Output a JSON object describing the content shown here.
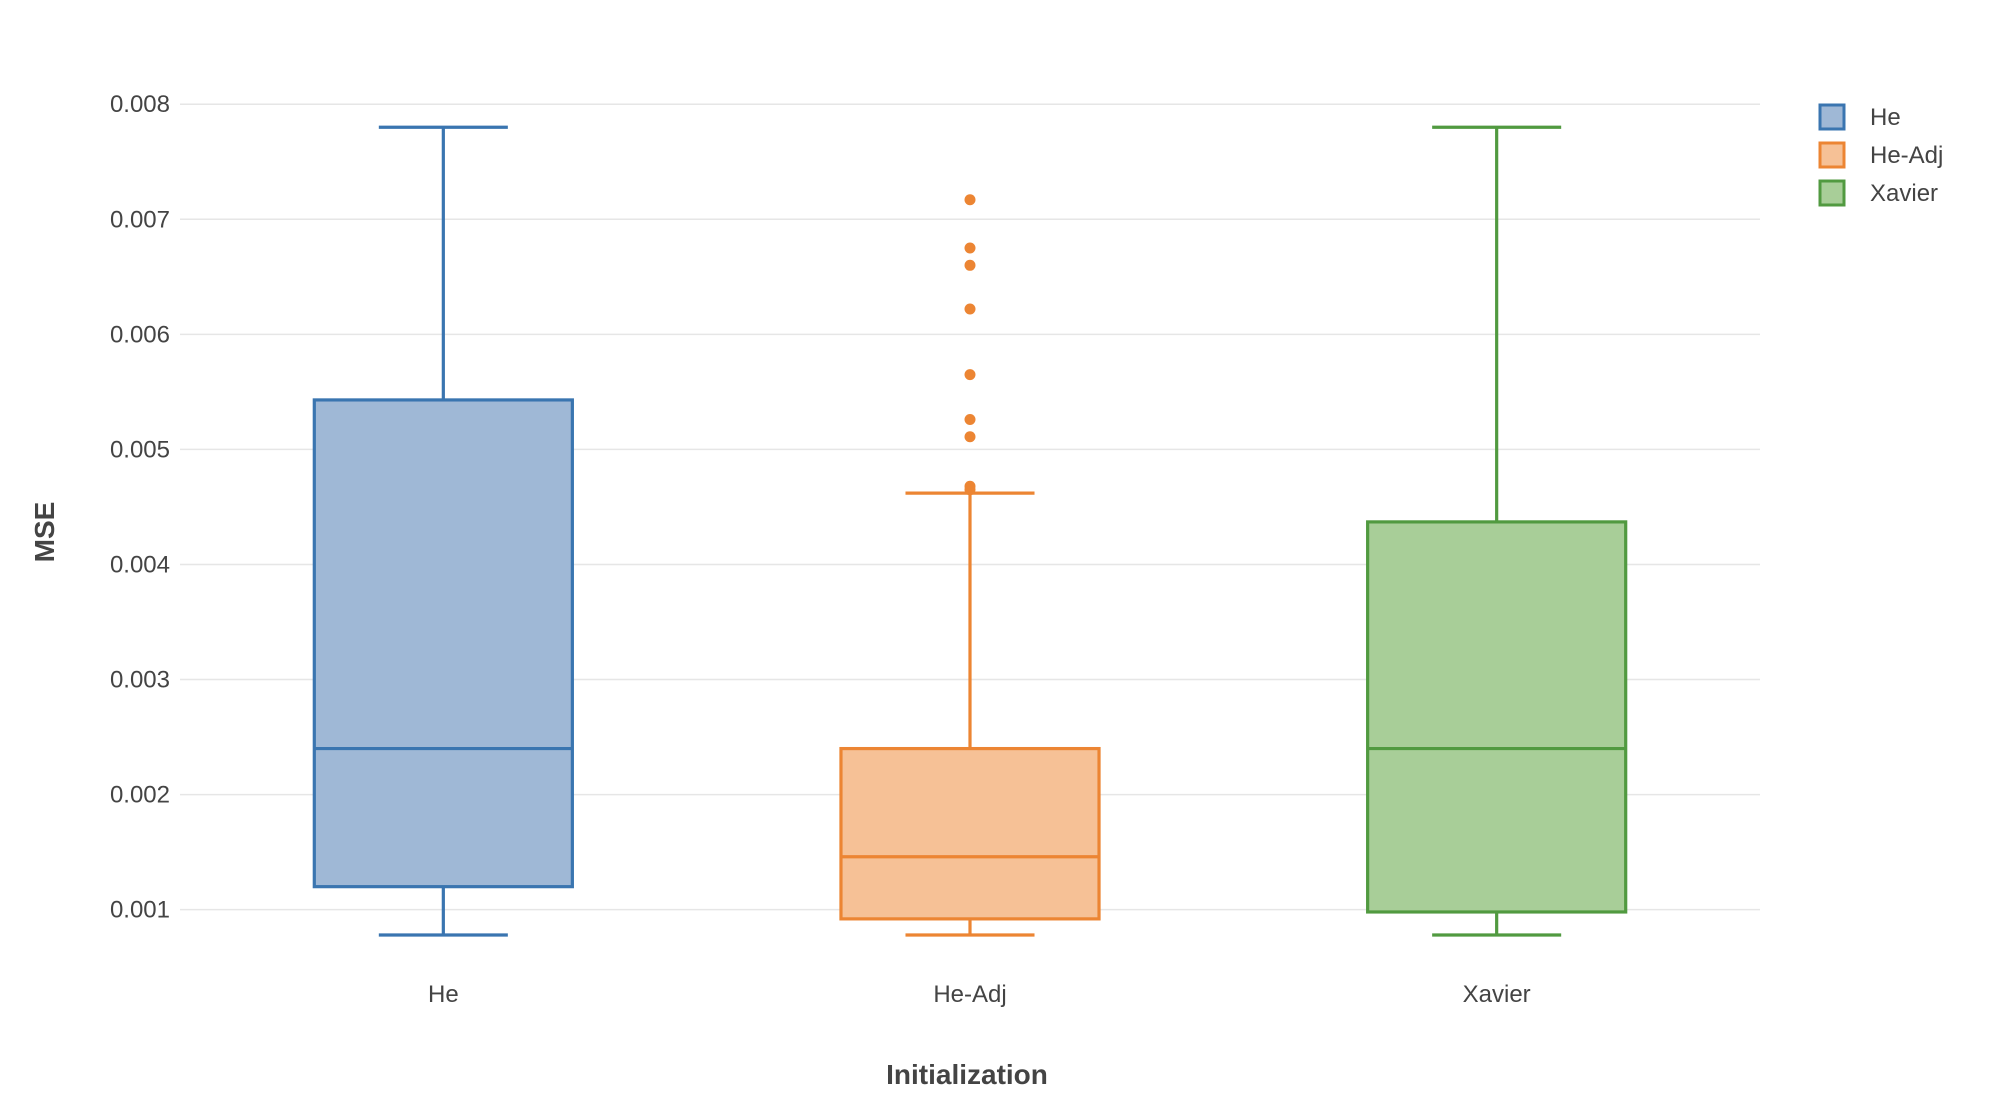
{
  "chart_data": {
    "type": "box",
    "title": "",
    "xlabel": "Initialization",
    "ylabel": "MSE",
    "ylim": [
      0.00058,
      0.00808
    ],
    "yticks": [
      0.001,
      0.002,
      0.003,
      0.004,
      0.005,
      0.006,
      0.007,
      0.008
    ],
    "ytick_labels": [
      "0.001",
      "0.002",
      "0.003",
      "0.004",
      "0.005",
      "0.006",
      "0.007",
      "0.008"
    ],
    "categories": [
      "He",
      "He-Adj",
      "Xavier"
    ],
    "grid": true,
    "legend": "top-right",
    "series": [
      {
        "name": "He",
        "color": "#3a75b0",
        "fill": "#9fb8d6",
        "min": 0.00078,
        "q1": 0.0012,
        "median": 0.0024,
        "q3": 0.00543,
        "max": 0.0078,
        "outliers": []
      },
      {
        "name": "He-Adj",
        "color": "#ec8533",
        "fill": "#f6c196",
        "min": 0.00078,
        "q1": 0.00092,
        "median": 0.00146,
        "q3": 0.0024,
        "max": 0.00462,
        "outliers": [
          0.00717,
          0.00675,
          0.0066,
          0.00622,
          0.00565,
          0.00526,
          0.00511,
          0.00468,
          0.00465
        ]
      },
      {
        "name": "Xavier",
        "color": "#519a40",
        "fill": "#a8ce98",
        "min": 0.00078,
        "q1": 0.00098,
        "median": 0.0024,
        "q3": 0.00437,
        "max": 0.0078,
        "outliers": []
      }
    ]
  }
}
